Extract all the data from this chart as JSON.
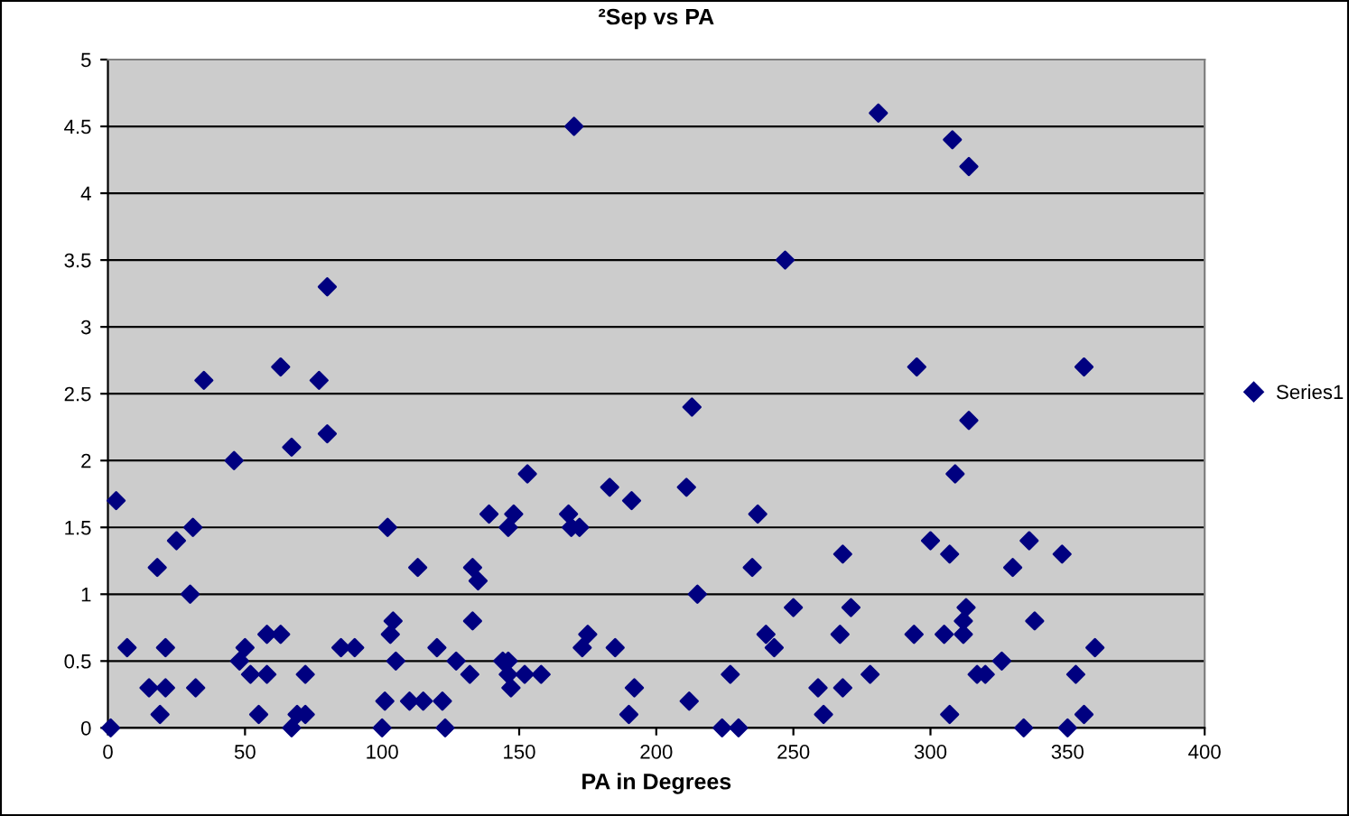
{
  "chart_data": {
    "type": "scatter",
    "title": "²Sep vs PA",
    "xlabel": "PA in Degrees",
    "series": [
      {
        "name": "Series1",
        "color": "#000080",
        "x": [
          1,
          3,
          7,
          15,
          18,
          19,
          21,
          21,
          25,
          30,
          31,
          32,
          35,
          46,
          48,
          50,
          52,
          55,
          58,
          58,
          63,
          63,
          67,
          67,
          69,
          72,
          72,
          77,
          80,
          80,
          85,
          90,
          100,
          101,
          102,
          103,
          104,
          105,
          110,
          113,
          115,
          120,
          122,
          123,
          127,
          132,
          133,
          133,
          135,
          139,
          144,
          146,
          146,
          146,
          147,
          148,
          152,
          153,
          158,
          168,
          169,
          170,
          172,
          173,
          175,
          183,
          185,
          190,
          191,
          192,
          211,
          212,
          213,
          215,
          224,
          227,
          230,
          235,
          237,
          240,
          243,
          247,
          250,
          259,
          261,
          267,
          268,
          268,
          271,
          278,
          281,
          294,
          295,
          300,
          305,
          307,
          307,
          308,
          309,
          312,
          312,
          313,
          314,
          314,
          317,
          320,
          326,
          330,
          334,
          336,
          338,
          348,
          350,
          353,
          356,
          356,
          360
        ],
        "values": [
          0,
          1.7,
          0.6,
          0.3,
          1.2,
          0.1,
          0.3,
          0.6,
          1.4,
          1.0,
          1.5,
          0.3,
          2.6,
          2.0,
          0.5,
          0.6,
          0.4,
          0.1,
          0.4,
          0.7,
          0.7,
          2.7,
          0,
          2.1,
          0.1,
          0.1,
          0.4,
          2.6,
          3.3,
          2.2,
          0.6,
          0.6,
          0,
          0.2,
          1.5,
          0.7,
          0.8,
          0.5,
          0.2,
          1.2,
          0.2,
          0.6,
          0.2,
          0,
          0.5,
          0.4,
          1.2,
          0.8,
          1.1,
          1.6,
          0.5,
          0.5,
          1.5,
          0.4,
          0.3,
          1.6,
          0.4,
          1.9,
          0.4,
          1.6,
          1.5,
          4.5,
          1.5,
          0.6,
          0.7,
          1.8,
          0.6,
          0.1,
          1.7,
          0.3,
          1.8,
          0.2,
          2.4,
          1.0,
          0,
          0.4,
          0,
          1.2,
          1.6,
          0.7,
          0.6,
          3.5,
          0.9,
          0.3,
          0.1,
          0.7,
          1.3,
          0.3,
          0.9,
          0.4,
          4.6,
          0.7,
          2.7,
          1.4,
          0.7,
          1.3,
          0.1,
          4.4,
          1.9,
          0.8,
          0.7,
          0.9,
          4.2,
          2.3,
          0.4,
          0.4,
          0.5,
          1.2,
          0,
          1.4,
          0.8,
          1.3,
          0,
          0.4,
          0.1,
          2.7,
          0.6
        ]
      }
    ],
    "xlim": [
      0,
      400
    ],
    "xticks": [
      0,
      50,
      100,
      150,
      200,
      250,
      300,
      350,
      400
    ],
    "ylim": [
      0,
      5
    ],
    "yticks": [
      0,
      0.5,
      1,
      1.5,
      2,
      2.5,
      3,
      3.5,
      4,
      4.5,
      5
    ],
    "grid": "y",
    "legend": "right",
    "marker": "diamond"
  }
}
